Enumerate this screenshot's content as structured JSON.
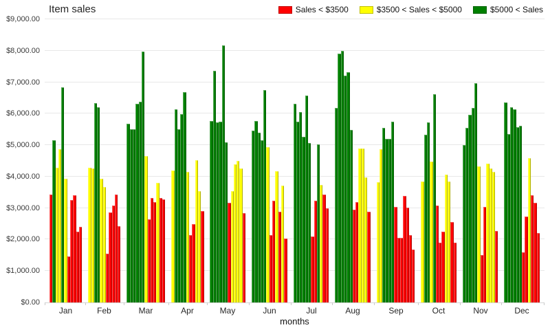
{
  "title": "Item sales",
  "legend": [
    {
      "label": "Sales < $3500",
      "color": "#ff0000"
    },
    {
      "label": "$3500 < Sales < $5000",
      "color": "#ffff00"
    },
    {
      "label": "$5000 < Sales",
      "color": "#008000"
    }
  ],
  "chart_data": {
    "type": "bar",
    "title": "Item sales",
    "xlabel": "months",
    "ylabel": "",
    "ylim": [
      0,
      9000
    ],
    "ytick_step": 1000,
    "ytick_labels": [
      "$0.00",
      "$1,000.00",
      "$2,000.00",
      "$3,000.00",
      "$4,000.00",
      "$5,000.00",
      "$6,000.00",
      "$7,000.00",
      "$8,000.00",
      "$9,000.00"
    ],
    "grid": true,
    "legend_position": "top-right",
    "color_rule": "red: sales < $3500; yellow: $3500 < sales < $5000; green: sales > $5000",
    "colors": {
      "red": "#ff0000",
      "yellow": "#ffff00",
      "green": "#008000"
    },
    "categories": [
      "Jan",
      "Feb",
      "Mar",
      "Apr",
      "May",
      "Jun",
      "Jul",
      "Aug",
      "Sep",
      "Oct",
      "Nov",
      "Dec"
    ],
    "groups": [
      {
        "month": "Jan",
        "bars": [
          {
            "c": "red",
            "v": 3440
          },
          {
            "c": "green",
            "v": 5150
          },
          {
            "c": "yellow",
            "v": 4280
          },
          {
            "c": "yellow",
            "v": 4870
          },
          {
            "c": "green",
            "v": 6830
          },
          {
            "c": "yellow",
            "v": 3930
          },
          {
            "c": "red",
            "v": 1460
          },
          {
            "c": "red",
            "v": 3260
          },
          {
            "c": "red",
            "v": 3400
          },
          {
            "c": "red",
            "v": 2260
          },
          {
            "c": "red",
            "v": 2400
          }
        ]
      },
      {
        "month": "Feb",
        "bars": [
          {
            "c": "yellow",
            "v": 4280
          },
          {
            "c": "yellow",
            "v": 4250
          },
          {
            "c": "green",
            "v": 6340
          },
          {
            "c": "green",
            "v": 6210
          },
          {
            "c": "yellow",
            "v": 3930
          },
          {
            "c": "yellow",
            "v": 3680
          },
          {
            "c": "red",
            "v": 1550
          },
          {
            "c": "red",
            "v": 2860
          },
          {
            "c": "red",
            "v": 3070
          },
          {
            "c": "red",
            "v": 3440
          },
          {
            "c": "red",
            "v": 2420
          }
        ]
      },
      {
        "month": "Mar",
        "bars": [
          {
            "c": "green",
            "v": 5680
          },
          {
            "c": "green",
            "v": 5500
          },
          {
            "c": "green",
            "v": 5510
          },
          {
            "c": "green",
            "v": 6320
          },
          {
            "c": "green",
            "v": 6370
          },
          {
            "c": "green",
            "v": 7970
          },
          {
            "c": "yellow",
            "v": 4660
          },
          {
            "c": "red",
            "v": 2640
          },
          {
            "c": "red",
            "v": 3310
          },
          {
            "c": "red",
            "v": 3180
          },
          {
            "c": "yellow",
            "v": 3800
          },
          {
            "c": "red",
            "v": 3310
          },
          {
            "c": "red",
            "v": 3280
          }
        ]
      },
      {
        "month": "Apr",
        "bars": [
          {
            "c": "yellow",
            "v": 4190
          },
          {
            "c": "green",
            "v": 6130
          },
          {
            "c": "green",
            "v": 5510
          },
          {
            "c": "green",
            "v": 5990
          },
          {
            "c": "green",
            "v": 6690
          },
          {
            "c": "yellow",
            "v": 4150
          },
          {
            "c": "red",
            "v": 2150
          },
          {
            "c": "red",
            "v": 2480
          },
          {
            "c": "yellow",
            "v": 4530
          },
          {
            "c": "yellow",
            "v": 3550
          },
          {
            "c": "red",
            "v": 2900
          }
        ]
      },
      {
        "month": "May",
        "bars": [
          {
            "c": "green",
            "v": 5770
          },
          {
            "c": "green",
            "v": 7370
          },
          {
            "c": "green",
            "v": 5720
          },
          {
            "c": "green",
            "v": 5740
          },
          {
            "c": "green",
            "v": 8160
          },
          {
            "c": "green",
            "v": 5080
          },
          {
            "c": "red",
            "v": 3170
          },
          {
            "c": "yellow",
            "v": 3530
          },
          {
            "c": "yellow",
            "v": 4400
          },
          {
            "c": "yellow",
            "v": 4500
          },
          {
            "c": "yellow",
            "v": 4250
          },
          {
            "c": "red",
            "v": 2840
          }
        ]
      },
      {
        "month": "Jun",
        "bars": [
          {
            "c": "green",
            "v": 5460
          },
          {
            "c": "green",
            "v": 5770
          },
          {
            "c": "green",
            "v": 5400
          },
          {
            "c": "green",
            "v": 5160
          },
          {
            "c": "green",
            "v": 6740
          },
          {
            "c": "yellow",
            "v": 4940
          },
          {
            "c": "red",
            "v": 2150
          },
          {
            "c": "red",
            "v": 3240
          },
          {
            "c": "yellow",
            "v": 4170
          },
          {
            "c": "red",
            "v": 2880
          },
          {
            "c": "yellow",
            "v": 3710
          },
          {
            "c": "red",
            "v": 2040
          }
        ]
      },
      {
        "month": "Jul",
        "bars": [
          {
            "c": "green",
            "v": 6320
          },
          {
            "c": "green",
            "v": 5750
          },
          {
            "c": "green",
            "v": 6060
          },
          {
            "c": "green",
            "v": 5260
          },
          {
            "c": "green",
            "v": 6570
          },
          {
            "c": "green",
            "v": 5060
          },
          {
            "c": "red",
            "v": 2100
          },
          {
            "c": "red",
            "v": 3240
          },
          {
            "c": "green",
            "v": 5030
          },
          {
            "c": "yellow",
            "v": 3730
          },
          {
            "c": "red",
            "v": 3440
          },
          {
            "c": "red",
            "v": 3000
          }
        ]
      },
      {
        "month": "Aug",
        "bars": [
          {
            "c": "green",
            "v": 6190
          },
          {
            "c": "green",
            "v": 7900
          },
          {
            "c": "green",
            "v": 8000
          },
          {
            "c": "green",
            "v": 7200
          },
          {
            "c": "green",
            "v": 7320
          },
          {
            "c": "green",
            "v": 5480
          },
          {
            "c": "red",
            "v": 2950
          },
          {
            "c": "red",
            "v": 3200
          },
          {
            "c": "yellow",
            "v": 4890
          },
          {
            "c": "yellow",
            "v": 4890
          },
          {
            "c": "yellow",
            "v": 3970
          },
          {
            "c": "red",
            "v": 2880
          }
        ]
      },
      {
        "month": "Sep",
        "bars": [
          {
            "c": "yellow",
            "v": 3820
          },
          {
            "c": "yellow",
            "v": 4880
          },
          {
            "c": "green",
            "v": 5550
          },
          {
            "c": "green",
            "v": 5210
          },
          {
            "c": "green",
            "v": 5190
          },
          {
            "c": "green",
            "v": 5750
          },
          {
            "c": "red",
            "v": 3040
          },
          {
            "c": "red",
            "v": 2050
          },
          {
            "c": "red",
            "v": 2060
          },
          {
            "c": "red",
            "v": 3390
          },
          {
            "c": "red",
            "v": 3010
          },
          {
            "c": "red",
            "v": 2150
          },
          {
            "c": "red",
            "v": 1690
          }
        ]
      },
      {
        "month": "Oct",
        "bars": [
          {
            "c": "yellow",
            "v": 3840
          },
          {
            "c": "green",
            "v": 5330
          },
          {
            "c": "green",
            "v": 5730
          },
          {
            "c": "yellow",
            "v": 4480
          },
          {
            "c": "green",
            "v": 6610
          },
          {
            "c": "red",
            "v": 3070
          },
          {
            "c": "red",
            "v": 1910
          },
          {
            "c": "red",
            "v": 2240
          },
          {
            "c": "yellow",
            "v": 4060
          },
          {
            "c": "yellow",
            "v": 3840
          },
          {
            "c": "red",
            "v": 2550
          },
          {
            "c": "red",
            "v": 1890
          }
        ]
      },
      {
        "month": "Nov",
        "bars": [
          {
            "c": "green",
            "v": 5010
          },
          {
            "c": "green",
            "v": 5540
          },
          {
            "c": "green",
            "v": 5960
          },
          {
            "c": "green",
            "v": 6190
          },
          {
            "c": "green",
            "v": 6960
          },
          {
            "c": "yellow",
            "v": 4330
          },
          {
            "c": "red",
            "v": 1510
          },
          {
            "c": "red",
            "v": 3040
          },
          {
            "c": "yellow",
            "v": 4410
          },
          {
            "c": "yellow",
            "v": 4270
          },
          {
            "c": "yellow",
            "v": 4150
          },
          {
            "c": "red",
            "v": 2270
          }
        ]
      },
      {
        "month": "Dec",
        "bars": [
          {
            "c": "green",
            "v": 6350
          },
          {
            "c": "green",
            "v": 5350
          },
          {
            "c": "green",
            "v": 6210
          },
          {
            "c": "green",
            "v": 6130
          },
          {
            "c": "green",
            "v": 5570
          },
          {
            "c": "green",
            "v": 5620
          },
          {
            "c": "red",
            "v": 1600
          },
          {
            "c": "red",
            "v": 2730
          },
          {
            "c": "yellow",
            "v": 4590
          },
          {
            "c": "red",
            "v": 3410
          },
          {
            "c": "red",
            "v": 3170
          },
          {
            "c": "red",
            "v": 2200
          }
        ]
      }
    ]
  }
}
